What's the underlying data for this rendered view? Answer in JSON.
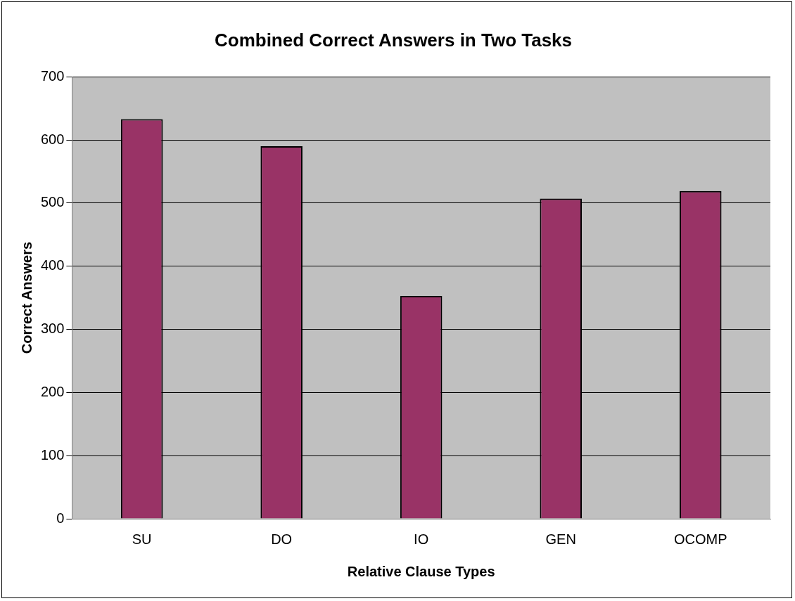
{
  "chart_data": {
    "type": "bar",
    "title": "Combined Correct Answers in Two Tasks",
    "xlabel": "Relative Clause Types",
    "ylabel": "Correct Answers",
    "categories": [
      "SU",
      "DO",
      "IO",
      "GEN",
      "OCOMP"
    ],
    "values": [
      633,
      590,
      353,
      507,
      519
    ],
    "color": "#993366",
    "ylim": [
      0,
      700
    ],
    "yticks": [
      0,
      100,
      200,
      300,
      400,
      500,
      600,
      700
    ],
    "grid": "y",
    "legend": false
  }
}
